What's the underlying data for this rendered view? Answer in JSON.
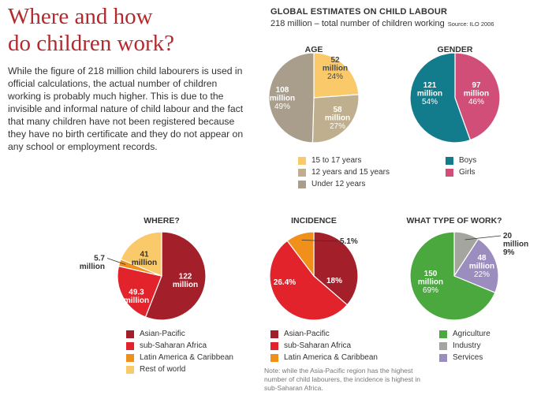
{
  "title": {
    "line1": "Where and how",
    "line2": "do children work?"
  },
  "intro": "While the figure of 218 million child labourers is used in official calculations, the actual number of children working is probably much higher. This is due to the invisible and informal nature of child labour and the fact that many children have not been registered because they have no birth certificate and they do not appear on any school or employment records.",
  "header": {
    "title": "GLOBAL ESTIMATES ON CHILD LABOUR",
    "subtitle": "218 million – total number of children working",
    "source": "Source: ILO  2006"
  },
  "note": "Note: while the Asia-Pacific region has the highest number of child labourers, the incidence is highest in sub-Saharan Africa.",
  "chart_data": [
    {
      "id": "age",
      "type": "pie",
      "title": "AGE",
      "slices": [
        {
          "name": "15 to 17 years",
          "value": 52,
          "label_lines": [
            "52",
            "million",
            "24%"
          ],
          "color": "#f9c96a",
          "text_color": "#4a4a4a"
        },
        {
          "name": "12 years and 15 years",
          "value": 58,
          "label_lines": [
            "58",
            "million",
            "27%"
          ],
          "color": "#bfaf8e",
          "text_color": "#ffffff"
        },
        {
          "name": "Under 12 years",
          "value": 108,
          "label_lines": [
            "108",
            "million",
            "49%"
          ],
          "color": "#a99d8c",
          "text_color": "#ffffff"
        }
      ],
      "legend": [
        "15 to 17 years",
        "12 years and 15 years",
        "Under 12 years"
      ]
    },
    {
      "id": "gender",
      "type": "pie",
      "title": "GENDER",
      "slices": [
        {
          "name": "Girls",
          "value": 97,
          "label_lines": [
            "97",
            "million",
            "46%"
          ],
          "color": "#d14e78",
          "text_color": "#ffffff"
        },
        {
          "name": "Boys",
          "value": 121,
          "label_lines": [
            "121",
            "million",
            "54%"
          ],
          "color": "#137c8c",
          "text_color": "#ffffff"
        }
      ],
      "legend": [
        "Boys",
        "Girls"
      ]
    },
    {
      "id": "where",
      "type": "pie",
      "title": "WHERE?",
      "slices": [
        {
          "name": "Asian-Pacific",
          "value": 122,
          "label_lines": [
            "122",
            "million"
          ],
          "color": "#a3202a",
          "text_color": "#ffffff"
        },
        {
          "name": "sub-Saharan Africa",
          "value": 49.3,
          "label_lines": [
            "49.3",
            "million"
          ],
          "color": "#e2232b",
          "text_color": "#ffffff"
        },
        {
          "name": "Latin America & Caribbean",
          "value": 5.7,
          "label_lines": [
            "5.7",
            "million"
          ],
          "color": "#f0901b",
          "text_color": "#333333"
        },
        {
          "name": "Rest of world",
          "value": 41,
          "label_lines": [
            "41",
            "million"
          ],
          "color": "#f9c96a",
          "text_color": "#333333"
        }
      ],
      "legend": [
        "Asian-Pacific",
        "sub-Saharan Africa",
        "Latin America & Caribbean",
        "Rest of world"
      ]
    },
    {
      "id": "incidence",
      "type": "pie",
      "title": "INCIDENCE",
      "slices": [
        {
          "name": "Asian-Pacific",
          "value": 18,
          "label_lines": [
            "18%"
          ],
          "color": "#a3202a",
          "text_color": "#ffffff"
        },
        {
          "name": "sub-Saharan Africa",
          "value": 26.4,
          "label_lines": [
            "26.4%"
          ],
          "color": "#e2232b",
          "text_color": "#ffffff"
        },
        {
          "name": "Latin America & Caribbean",
          "value": 5.1,
          "label_lines": [
            "5.1%"
          ],
          "color": "#f0901b",
          "text_color": "#333333"
        }
      ],
      "legend": [
        "Asian-Pacific",
        "sub-Saharan Africa",
        "Latin America & Caribbean"
      ]
    },
    {
      "id": "work",
      "type": "pie",
      "title": "WHAT TYPE OF WORK?",
      "slices": [
        {
          "name": "Industry",
          "value": 20,
          "label_lines": [
            "20",
            "million",
            "9%"
          ],
          "color": "#a5a5a0",
          "text_color": "#333333"
        },
        {
          "name": "Services",
          "value": 48,
          "label_lines": [
            "48",
            "million",
            "22%"
          ],
          "color": "#9b8dbd",
          "text_color": "#ffffff"
        },
        {
          "name": "Agriculture",
          "value": 150,
          "label_lines": [
            "150",
            "million",
            "69%"
          ],
          "color": "#4aa83f",
          "text_color": "#ffffff"
        }
      ],
      "legend": [
        "Agriculture",
        "Industry",
        "Services"
      ]
    }
  ]
}
